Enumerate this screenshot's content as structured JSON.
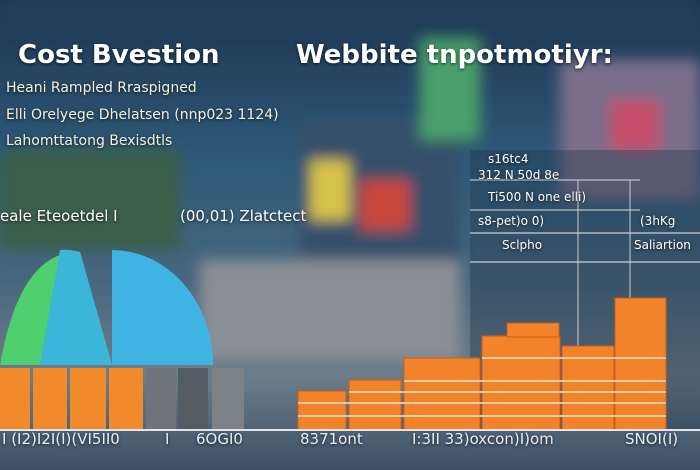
{
  "header": {
    "title_left": "Cost Bvestion",
    "title_right": "Webbite tnpotmotiyr:"
  },
  "subtitles": [
    "Heani Rampled Rraspigned",
    "Elli Orelyege Dhelatsen (nnp023 1124)",
    "Lahomttatong Bexisdtls"
  ],
  "chart_labels": [
    "eale Eteoetdel I",
    "(00,01) Zlatctect"
  ],
  "panel": [
    "s16tc4",
    "312 N 50d 8e",
    "Ti500 N one elli)",
    "s8-pet)o 0)",
    "(3hKg",
    "Sclpho",
    "Saliartion"
  ],
  "axis_labels": [
    "I (I2)I2I(I)(VI5II0",
    "I",
    "6OGI0",
    "8371ont",
    "I:3II 33)oxcon)I)om",
    "SNOI(I)"
  ]
}
